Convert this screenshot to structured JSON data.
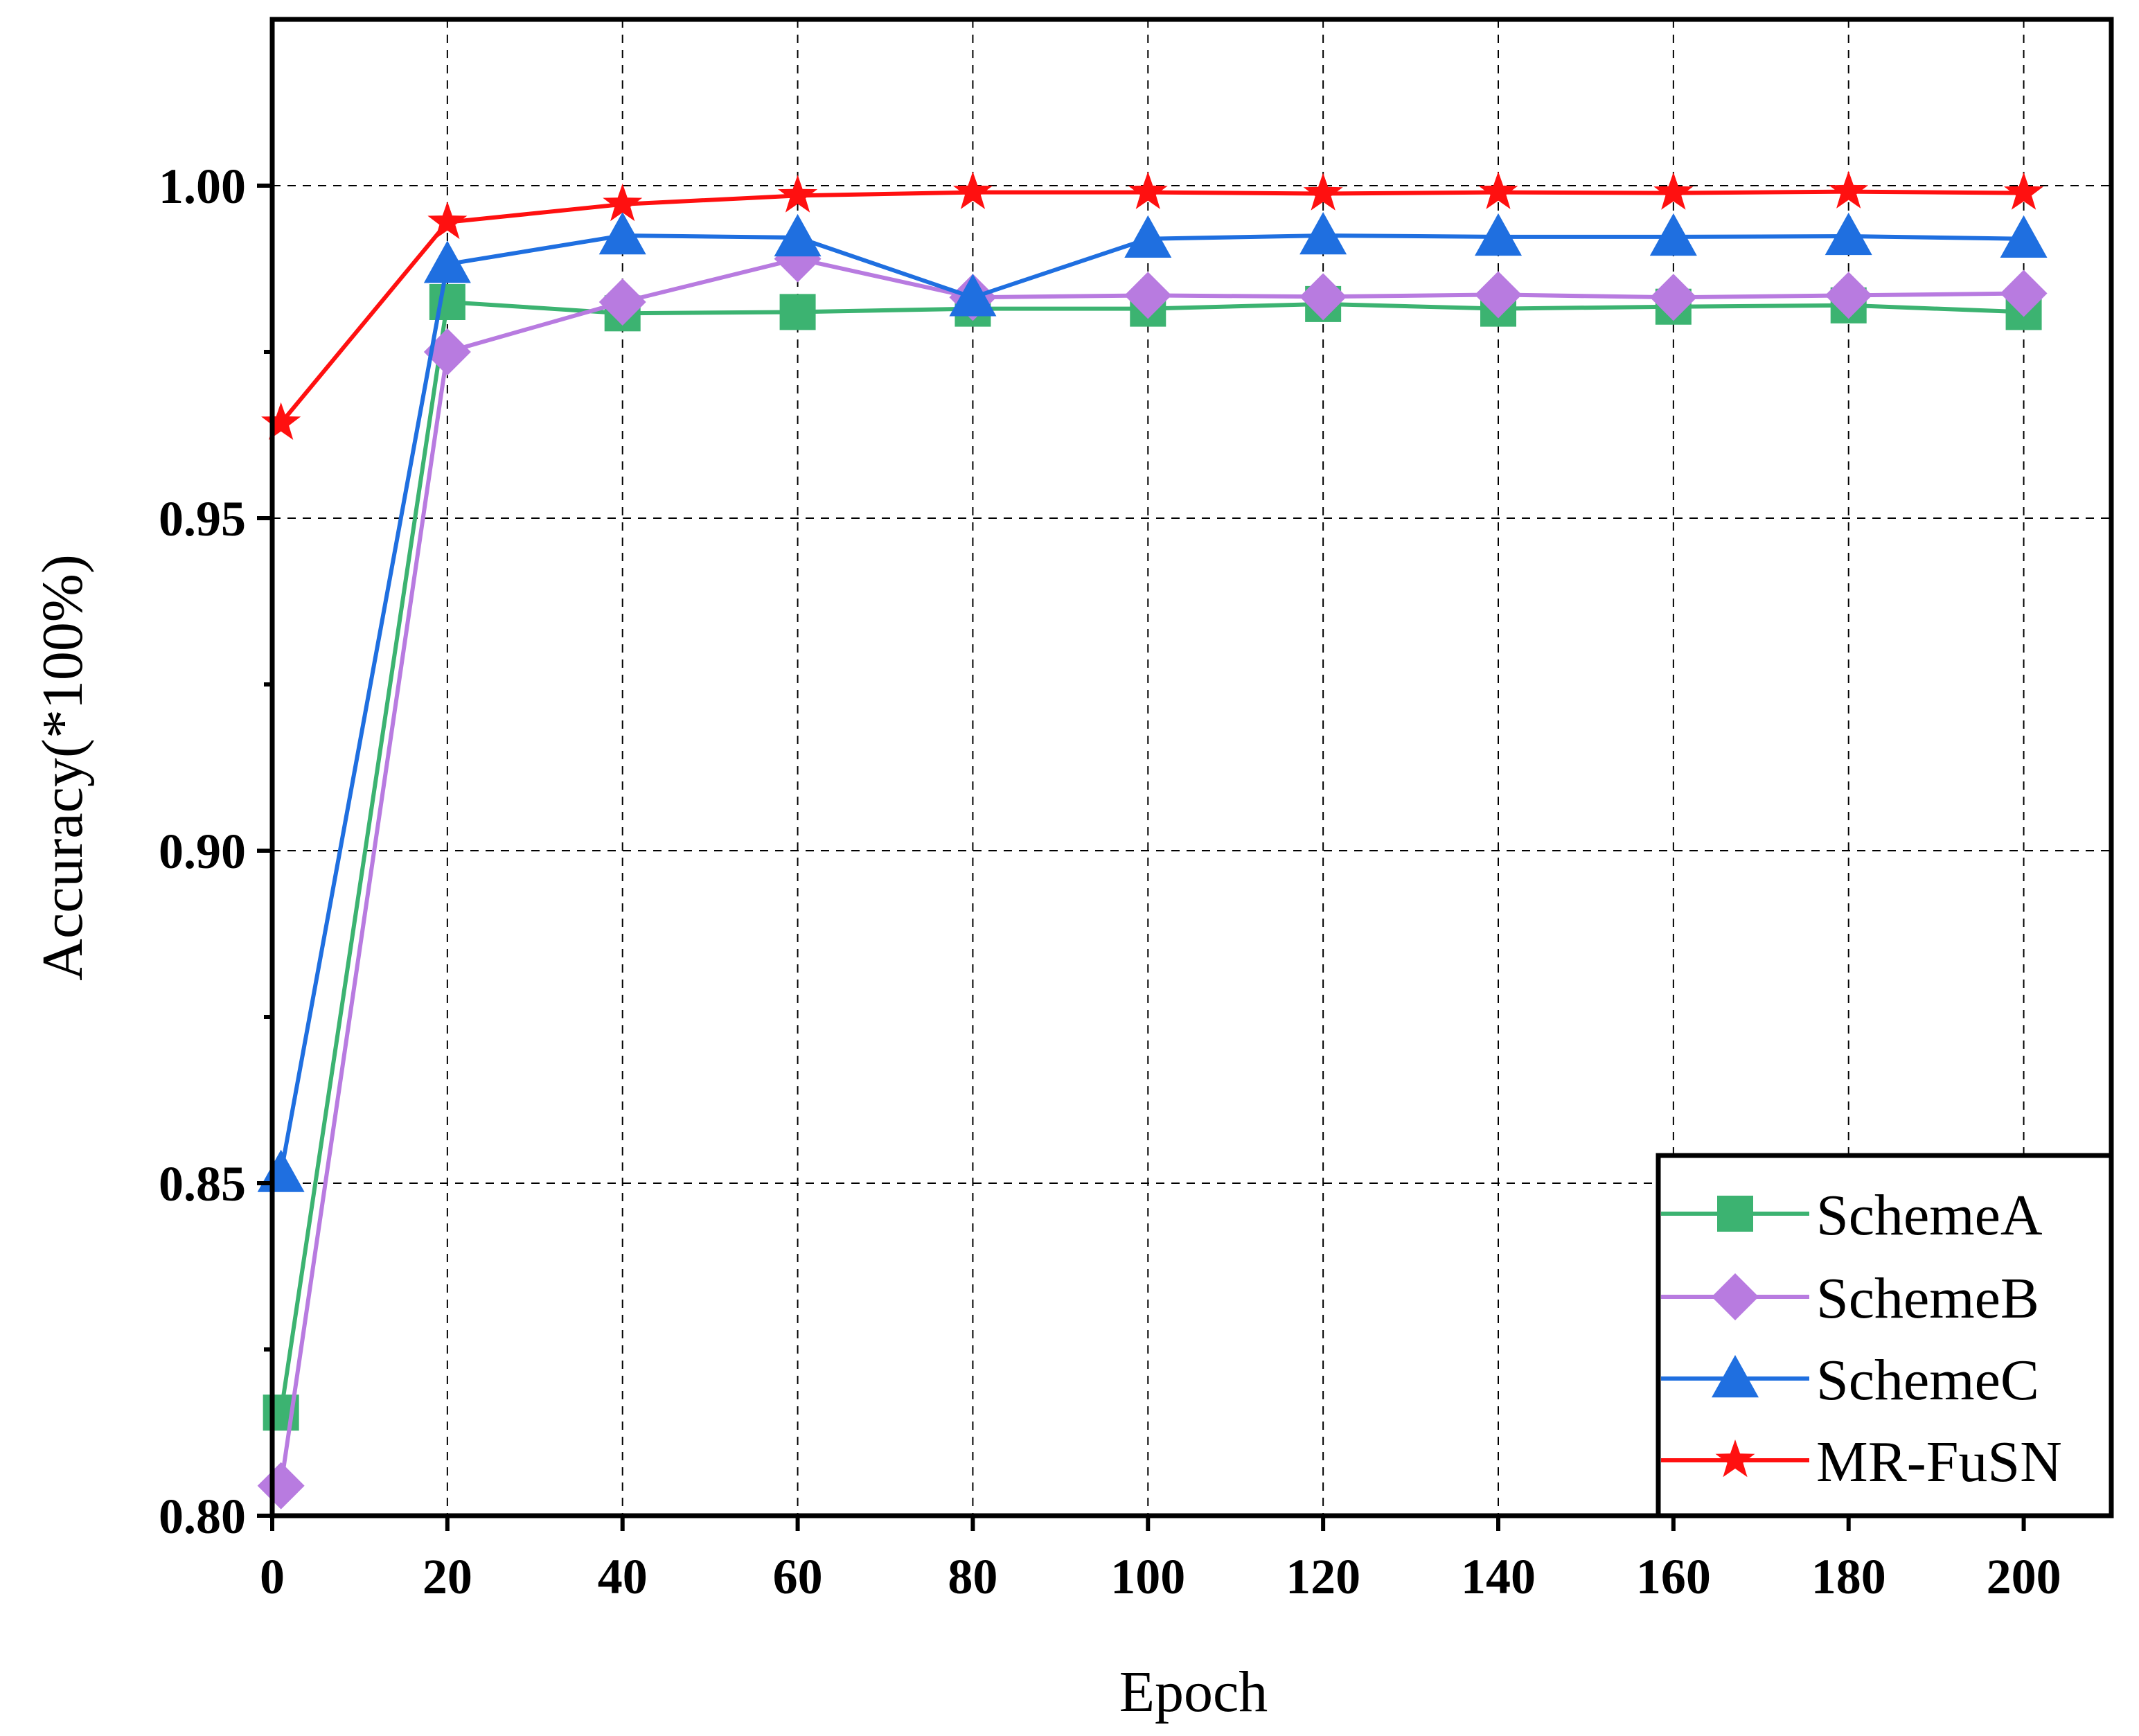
{
  "chart_data": {
    "type": "line",
    "xlabel": "Epoch",
    "ylabel": "Accuracy(*100%)",
    "xlim": [
      0,
      210
    ],
    "ylim": [
      0.8,
      1.025
    ],
    "grid": true,
    "x_ticks": [
      0,
      20,
      40,
      60,
      80,
      100,
      120,
      140,
      160,
      180,
      200
    ],
    "x_tick_labels": [
      "0",
      "20",
      "40",
      "60",
      "80",
      "100",
      "120",
      "140",
      "160",
      "180",
      "200"
    ],
    "y_ticks": [
      0.8,
      0.85,
      0.9,
      0.95,
      1.0
    ],
    "y_tick_labels": [
      "0.80",
      "0.85",
      "0.90",
      "0.95",
      "1.00"
    ],
    "legend_position": "bottom-right",
    "x": [
      1,
      20,
      40,
      60,
      80,
      100,
      120,
      140,
      160,
      180,
      200
    ],
    "series": [
      {
        "name": "SchemeA",
        "color": "#3cb371",
        "marker": "square",
        "values": [
          0.8155,
          0.9825,
          0.9808,
          0.981,
          0.9815,
          0.9815,
          0.9822,
          0.9815,
          0.9818,
          0.982,
          0.981
        ]
      },
      {
        "name": "SchemeB",
        "color": "#b87be0",
        "marker": "diamond",
        "values": [
          0.8045,
          0.975,
          0.9825,
          0.989,
          0.9832,
          0.9835,
          0.9833,
          0.9836,
          0.9832,
          0.9835,
          0.9838
        ]
      },
      {
        "name": "SchemeC",
        "color": "#1f6fe0",
        "marker": "triangle",
        "values": [
          0.8515,
          0.9882,
          0.9925,
          0.9922,
          0.9832,
          0.992,
          0.9925,
          0.9923,
          0.9923,
          0.9924,
          0.992
        ]
      },
      {
        "name": "MR-FuSN",
        "color": "#ff1010",
        "marker": "star",
        "values": [
          0.9643,
          0.9945,
          0.9972,
          0.9985,
          0.999,
          0.999,
          0.9988,
          0.999,
          0.9989,
          0.9991,
          0.9989
        ]
      }
    ]
  }
}
